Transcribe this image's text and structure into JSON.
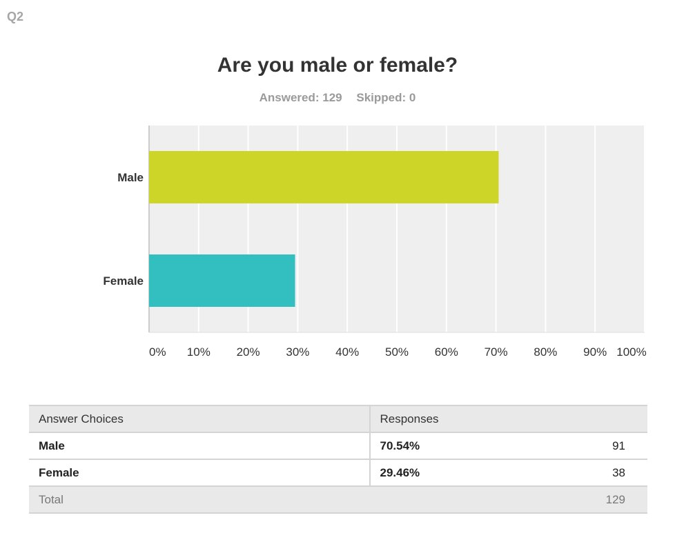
{
  "question_label": "Q2",
  "title": "Are you male or female?",
  "answered_label": "Answered: 129",
  "skipped_label": "Skipped: 0",
  "colors": {
    "male": "#cdd628",
    "female": "#33bfc0",
    "plot_bg": "#efefef",
    "grid": "#ffffff"
  },
  "chart_data": {
    "type": "bar",
    "orientation": "horizontal",
    "categories": [
      "Male",
      "Female"
    ],
    "values": [
      70.54,
      29.46
    ],
    "xlim": [
      0,
      100
    ],
    "x_ticks": [
      "0%",
      "10%",
      "20%",
      "30%",
      "40%",
      "50%",
      "60%",
      "70%",
      "80%",
      "90%",
      "100%"
    ],
    "grid": true
  },
  "table": {
    "headers": {
      "choice": "Answer Choices",
      "responses": "Responses"
    },
    "rows": [
      {
        "choice": "Male",
        "percent": "70.54%",
        "count": "91"
      },
      {
        "choice": "Female",
        "percent": "29.46%",
        "count": "38"
      }
    ],
    "total": {
      "label": "Total",
      "count": "129"
    }
  }
}
